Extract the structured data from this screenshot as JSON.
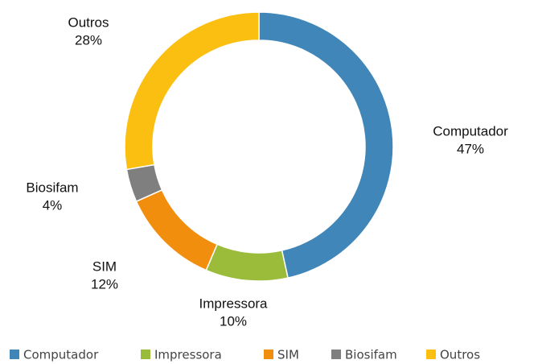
{
  "chart_data": {
    "type": "donut",
    "categories": [
      "Computador",
      "Impressora",
      "SIM",
      "Biosifam",
      "Outros"
    ],
    "values": [
      47,
      10,
      12,
      4,
      28
    ],
    "value_labels": [
      "47%",
      "10%",
      "12%",
      "4%",
      "28%"
    ],
    "colors": [
      "#4186b8",
      "#9bbb3b",
      "#f28e0e",
      "#7f7f7f",
      "#fbbf12"
    ],
    "legend": "bottom"
  }
}
